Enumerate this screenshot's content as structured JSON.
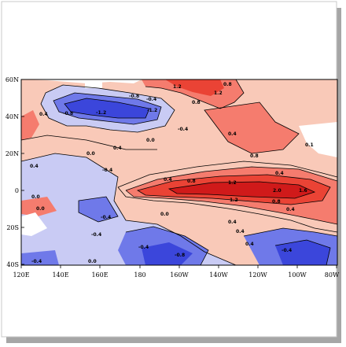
{
  "map": {
    "lat_labels": [
      "60N",
      "40N",
      "20N",
      "0",
      "20S",
      "40S"
    ],
    "lon_labels": [
      "120E",
      "140E",
      "160E",
      "180",
      "160W",
      "140W",
      "120W",
      "100W",
      "80W"
    ],
    "colors": {
      "frame_shadow": "#a6a6a6",
      "land": "#ffffff",
      "pos_weak": "#f9c9b8",
      "pos_mid": "#f57c6e",
      "pos_strong": "#ea4335",
      "pos_core": "#d01a1a",
      "neg_weak": "#c9cbf4",
      "neg_mid": "#6f79e9",
      "neg_strong": "#3b46db"
    },
    "contour_labels": [
      {
        "text": "1.2"
      },
      {
        "text": "0.8"
      },
      {
        "text": "0.8"
      },
      {
        "text": "1.2"
      },
      {
        "text": "0.4"
      },
      {
        "text": "-0.8"
      },
      {
        "text": "-0.4"
      },
      {
        "text": "-1.2"
      },
      {
        "text": "-1.2"
      },
      {
        "text": "-0.4"
      },
      {
        "text": "-0.8"
      },
      {
        "text": "0.4"
      },
      {
        "text": "0.0"
      },
      {
        "text": "0.4"
      },
      {
        "text": "0.8"
      },
      {
        "text": "0.0"
      },
      {
        "text": "-0.4"
      },
      {
        "text": "0.4"
      },
      {
        "text": "0.0"
      },
      {
        "text": "0.4"
      },
      {
        "text": "0.8"
      },
      {
        "text": "1.2"
      },
      {
        "text": "2.0"
      },
      {
        "text": "1.6"
      },
      {
        "text": "0.4"
      },
      {
        "text": "1.2"
      },
      {
        "text": "0.8"
      },
      {
        "text": "0.4"
      },
      {
        "text": "0.0"
      },
      {
        "text": "-0.4"
      },
      {
        "text": "0.0"
      },
      {
        "text": "0.4"
      },
      {
        "text": "-0.4"
      },
      {
        "text": "-0.8"
      },
      {
        "text": "-0.4"
      },
      {
        "text": "0.0"
      },
      {
        "text": "0.4"
      },
      {
        "text": "-0.4"
      },
      {
        "text": "0.4"
      },
      {
        "text": "0.1"
      },
      {
        "text": "-0.4"
      }
    ]
  }
}
